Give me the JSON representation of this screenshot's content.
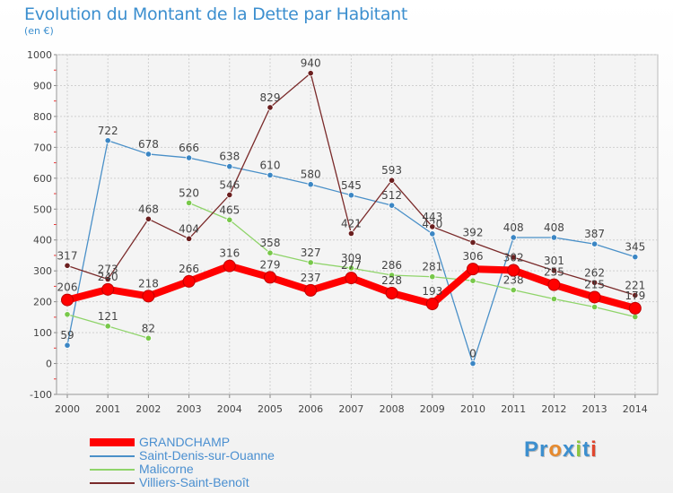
{
  "title": "Evolution du Montant de la Dette par Habitant",
  "subtitle": "(en €)",
  "logo": {
    "text": "Proxiti",
    "colors": [
      "#3c8fcf",
      "#3c8fcf",
      "#e68a2e",
      "#3c8fcf",
      "#8cc63f",
      "#3c8fcf",
      "#e0462e"
    ]
  },
  "chart_data": {
    "type": "line",
    "x": [
      "2000",
      "2001",
      "2002",
      "2003",
      "2004",
      "2005",
      "2006",
      "2007",
      "2008",
      "2009",
      "2010",
      "2011",
      "2012",
      "2013",
      "2014"
    ],
    "ylim": [
      -100,
      1000
    ],
    "yticks": [
      -100,
      0,
      100,
      200,
      300,
      400,
      500,
      600,
      700,
      800,
      900,
      1000
    ],
    "grid": true,
    "legend_position": "bottom-left",
    "series": [
      {
        "name": "Saint-Denis-sur-Ouanne",
        "color": "#4a90c8",
        "marker": "#3b86c4",
        "values": [
          59,
          722,
          678,
          666,
          638,
          610,
          580,
          545,
          512,
          420,
          0,
          408,
          408,
          387,
          345
        ],
        "labels": [
          "59",
          "722",
          "678",
          "666",
          "638",
          "610",
          "580",
          "545",
          "512",
          "420",
          "0",
          "408",
          "408",
          "387",
          "345"
        ]
      },
      {
        "name": "Malicorne",
        "color": "#8fd46a",
        "marker": "#78c84a",
        "values": [
          159,
          121,
          82,
          520,
          465,
          358,
          327,
          309,
          286,
          281,
          268,
          238,
          209,
          183,
          151
        ],
        "labels": [
          "",
          "121",
          "82",
          "520",
          "465",
          "358",
          "327",
          "309",
          "286",
          "281",
          "",
          "238",
          "",
          "",
          ""
        ],
        "segments": [
          [
            0,
            2
          ],
          [
            3,
            14
          ]
        ]
      },
      {
        "name": "Villiers-Saint-Benoît",
        "color": "#7a2a2a",
        "marker": "#6b1f1f",
        "values": [
          317,
          273,
          468,
          404,
          546,
          829,
          940,
          421,
          593,
          443,
          392,
          344,
          301,
          262,
          221
        ],
        "labels": [
          "317",
          "273",
          "468",
          "404",
          "546",
          "829",
          "940",
          "421",
          "593",
          "443",
          "392",
          "",
          "301",
          "262",
          "221"
        ]
      },
      {
        "name": "GRANDCHAMP",
        "color": "#ff0000",
        "marker": "#ff0000",
        "thick": true,
        "values": [
          206,
          240,
          218,
          266,
          316,
          279,
          237,
          277,
          228,
          193,
          306,
          302,
          255,
          215,
          179
        ],
        "labels": [
          "206",
          "240",
          "218",
          "266",
          "316",
          "279",
          "237",
          "277",
          "228",
          "193",
          "306",
          "302",
          "255",
          "215",
          "179"
        ]
      }
    ],
    "legend": [
      {
        "name": "GRANDCHAMP",
        "color": "#ff0000",
        "thick": true
      },
      {
        "name": "Saint-Denis-sur-Ouanne",
        "color": "#4a90c8"
      },
      {
        "name": "Malicorne",
        "color": "#8fd46a"
      },
      {
        "name": "Villiers-Saint-Benoît",
        "color": "#7a2a2a"
      }
    ]
  }
}
